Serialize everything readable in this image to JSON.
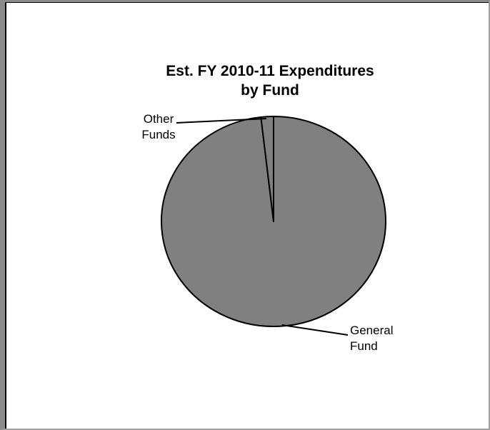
{
  "chart_data": {
    "type": "pie",
    "title": [
      "Est. FY 2010-11 Expenditures",
      "by Fund"
    ],
    "slices": [
      {
        "label": [
          "General",
          "Fund"
        ],
        "value": 98.2
      },
      {
        "label": [
          "Other",
          "Funds"
        ],
        "value": 1.8
      }
    ],
    "colors": {
      "slice_fill": "#808080",
      "stroke": "#000000",
      "background": "#ffffff"
    },
    "legend": "none",
    "labels": "outside with leader lines"
  }
}
